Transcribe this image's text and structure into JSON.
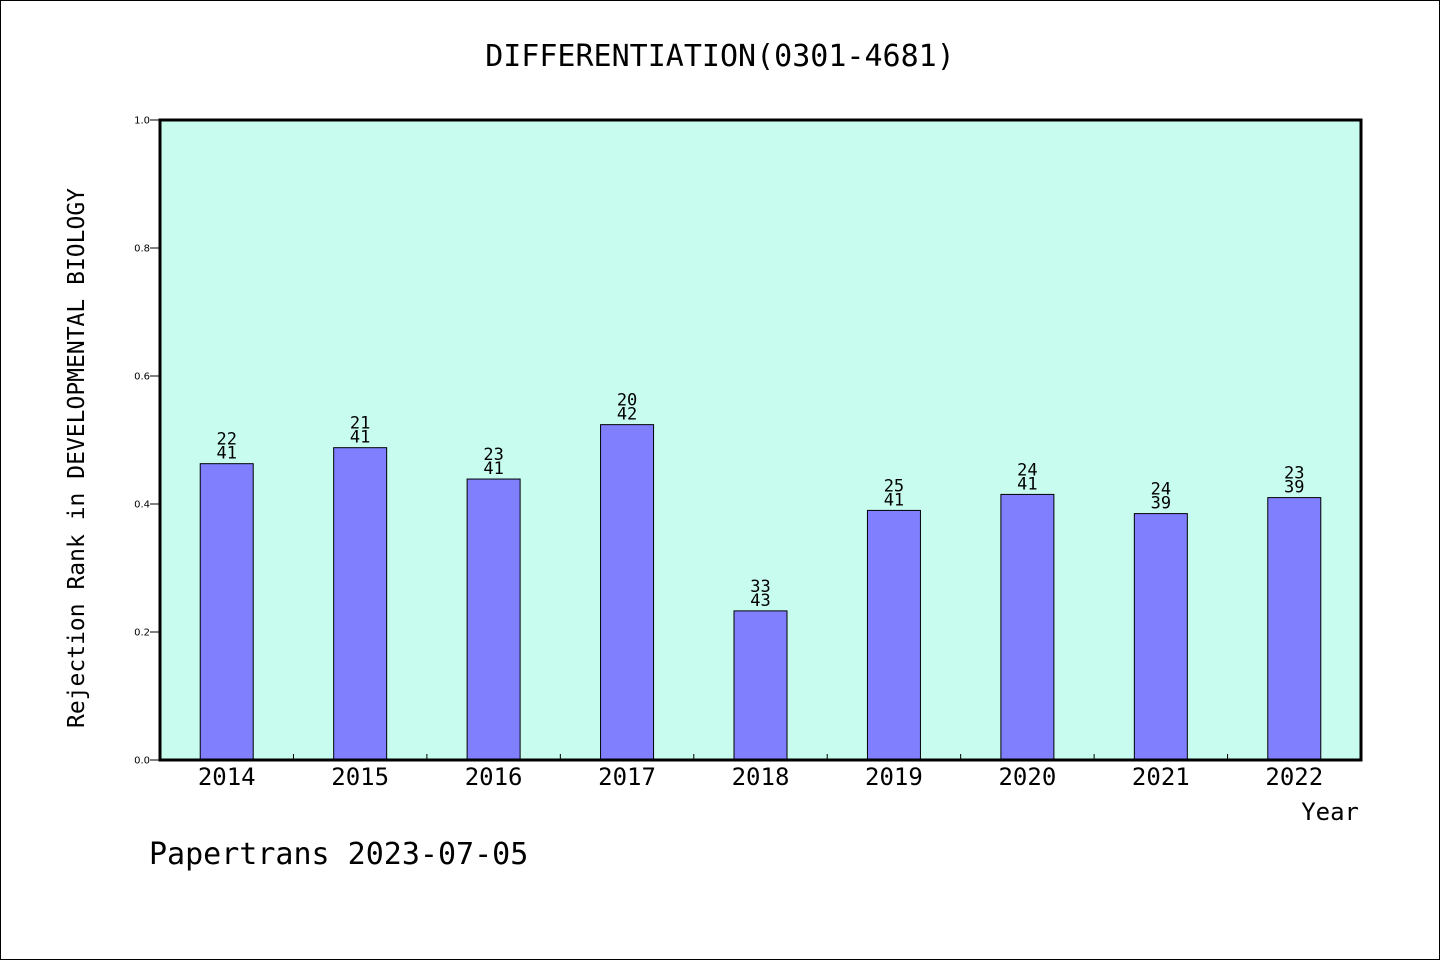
{
  "chart_data": {
    "type": "bar",
    "title": "DIFFERENTIATION(0301-4681)",
    "xlabel": "Year",
    "ylabel": "Rejection Rank in DEVELOPMENTAL BIOLOGY",
    "ylim": [
      0,
      1.0
    ],
    "yticks": [
      "0.0",
      "0.2",
      "0.4",
      "0.6",
      "0.8",
      "1.0"
    ],
    "categories": [
      "2014",
      "2015",
      "2016",
      "2017",
      "2018",
      "2019",
      "2020",
      "2021",
      "2022"
    ],
    "values": [
      0.463,
      0.488,
      0.439,
      0.524,
      0.233,
      0.39,
      0.415,
      0.385,
      0.41
    ],
    "data_labels": [
      [
        "22",
        "41"
      ],
      [
        "21",
        "41"
      ],
      [
        "23",
        "41"
      ],
      [
        "20",
        "42"
      ],
      [
        "33",
        "43"
      ],
      [
        "25",
        "41"
      ],
      [
        "24",
        "41"
      ],
      [
        "24",
        "39"
      ],
      [
        "23",
        "39"
      ]
    ],
    "grid": false,
    "colors": {
      "plot_background": "#c8fcee",
      "bar_fill": "#8080ff",
      "bar_stroke": "#000000"
    },
    "footer": "Papertrans 2023-07-05"
  }
}
